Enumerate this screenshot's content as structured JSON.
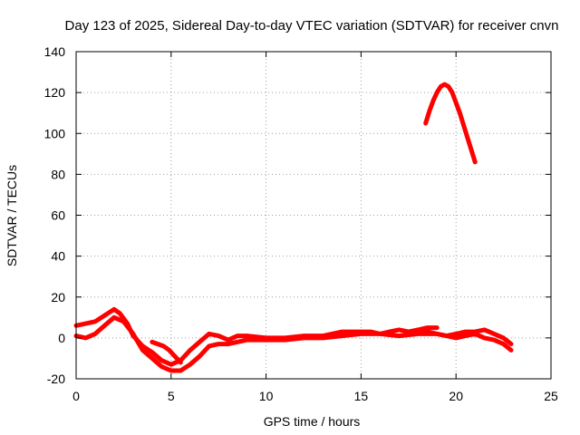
{
  "chart_data": {
    "type": "line",
    "title": "Day 123 of 2025, Sidereal Day-to-day VTEC variation (SDTVAR) for receiver cnvn",
    "xlabel": "GPS time / hours",
    "ylabel": "SDTVAR / TECUs",
    "xlim": [
      0,
      25
    ],
    "ylim": [
      -20,
      140
    ],
    "xticks": [
      0,
      5,
      10,
      15,
      20,
      25
    ],
    "yticks": [
      -20,
      0,
      20,
      40,
      60,
      80,
      100,
      120,
      140
    ],
    "grid": true,
    "legend": "none",
    "series_color": "#ff0000",
    "series": [
      {
        "name": "band-upper",
        "x": [
          0,
          0.5,
          1.0,
          1.5,
          2.0,
          2.3,
          2.7,
          3.0,
          3.5,
          4.0,
          4.5,
          5.0,
          5.5,
          6.0,
          6.5,
          7.0,
          7.5,
          8.0,
          8.5,
          9.0,
          10.0,
          11.0,
          12.0,
          13.0,
          14.0,
          15.0,
          15.5,
          16.0,
          16.5,
          17.0,
          17.5,
          18.0,
          18.5,
          19.0
        ],
        "values": [
          6,
          7,
          8,
          11,
          14,
          12,
          7,
          1,
          -4,
          -7,
          -11,
          -13,
          -11,
          -6,
          -2,
          2,
          1,
          -1,
          1,
          1,
          0,
          0,
          1,
          1,
          3,
          3,
          3,
          2,
          3,
          4,
          3,
          4,
          5,
          5
        ]
      },
      {
        "name": "band-lower",
        "x": [
          0,
          0.5,
          1.0,
          1.5,
          2.0,
          2.5,
          3.0,
          3.5,
          4.0,
          4.5,
          5.0,
          5.5,
          6.0,
          6.5,
          7.0,
          7.5,
          8.0,
          9.0,
          10.0,
          11.0,
          12.0,
          13.0,
          14.0,
          15.0,
          16.0,
          17.0,
          18.0,
          19.0,
          19.5,
          20.0,
          20.5,
          21.0,
          21.5,
          22.0,
          22.5,
          22.9
        ],
        "values": [
          1,
          0,
          2,
          6,
          10,
          8,
          2,
          -6,
          -10,
          -14,
          -16,
          -16,
          -13,
          -9,
          -4,
          -3,
          -3,
          -1,
          -1,
          -1,
          0,
          0,
          1,
          2,
          2,
          1,
          2,
          2,
          1,
          0,
          1,
          2,
          0,
          -1,
          -3,
          -6
        ]
      },
      {
        "name": "band-late",
        "x": [
          18.0,
          18.5,
          19.0,
          19.5,
          20.0,
          20.5,
          21.0,
          21.5,
          22.0,
          22.5,
          22.9
        ],
        "values": [
          3,
          3,
          2,
          1,
          2,
          3,
          3,
          4,
          2,
          0,
          -3
        ]
      },
      {
        "name": "gap-dip",
        "x": [
          4.0,
          4.3,
          4.6,
          4.9,
          5.2,
          5.5
        ],
        "values": [
          -2,
          -3,
          -4,
          -6,
          -9,
          -12
        ]
      },
      {
        "name": "arc",
        "x": [
          18.4,
          18.6,
          18.8,
          19.0,
          19.2,
          19.4,
          19.6,
          19.8,
          20.0,
          20.2,
          20.4,
          20.6,
          20.8,
          21.0
        ],
        "values": [
          105,
          111,
          116,
          120,
          123,
          124,
          123,
          120,
          115,
          110,
          104,
          98,
          92,
          86
        ]
      }
    ]
  }
}
